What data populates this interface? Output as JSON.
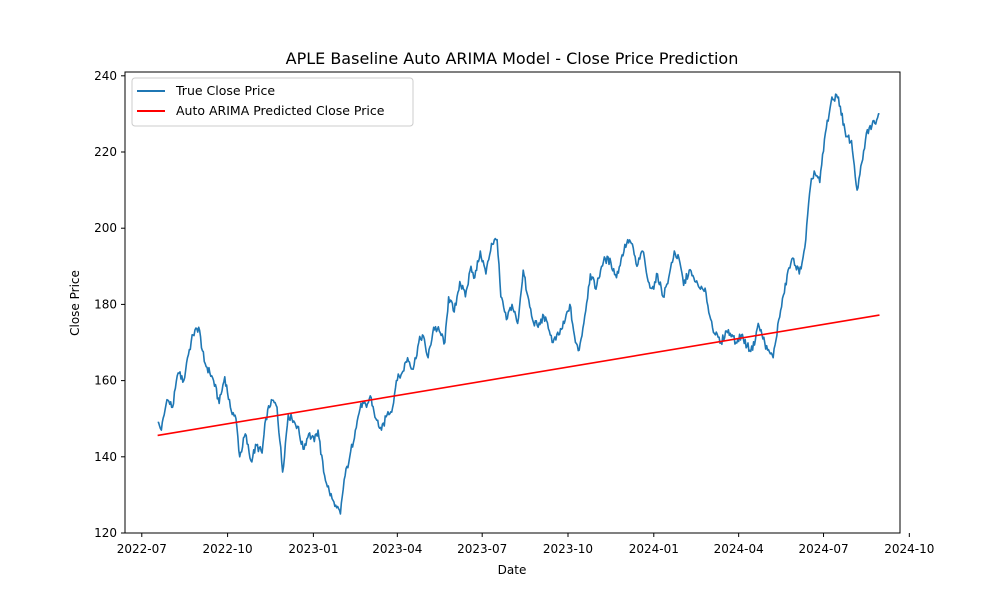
{
  "chart_data": {
    "type": "line",
    "title": "APLE Baseline Auto ARIMA Model - Close Price Prediction",
    "xlabel": "Date",
    "ylabel": "Close Price",
    "xlim": [
      "2022-06-13",
      "2024-09-21"
    ],
    "ylim": [
      120,
      241
    ],
    "xticks": [
      "2022-07",
      "2022-10",
      "2023-01",
      "2023-04",
      "2023-07",
      "2023-10",
      "2024-01",
      "2024-04",
      "2024-07",
      "2024-10"
    ],
    "yticks": [
      120,
      140,
      160,
      180,
      200,
      220,
      240
    ],
    "grid": false,
    "legend_position": "top-left",
    "series": [
      {
        "name": "True Close Price",
        "color": "#1f77b4",
        "x": [
          "2022-07-18",
          "2022-07-22",
          "2022-07-28",
          "2022-08-03",
          "2022-08-09",
          "2022-08-15",
          "2022-08-19",
          "2022-08-25",
          "2022-08-31",
          "2022-09-06",
          "2022-09-12",
          "2022-09-16",
          "2022-09-22",
          "2022-09-28",
          "2022-10-04",
          "2022-10-10",
          "2022-10-14",
          "2022-10-20",
          "2022-10-26",
          "2022-11-01",
          "2022-11-07",
          "2022-11-11",
          "2022-11-17",
          "2022-11-23",
          "2022-11-29",
          "2022-12-05",
          "2022-12-09",
          "2022-12-15",
          "2022-12-21",
          "2022-12-27",
          "2023-01-02",
          "2023-01-06",
          "2023-01-12",
          "2023-01-18",
          "2023-01-24",
          "2023-01-30",
          "2023-02-03",
          "2023-02-09",
          "2023-02-15",
          "2023-02-21",
          "2023-02-27",
          "2023-03-03",
          "2023-03-09",
          "2023-03-15",
          "2023-03-21",
          "2023-03-27",
          "2023-03-31",
          "2023-04-06",
          "2023-04-12",
          "2023-04-18",
          "2023-04-24",
          "2023-04-28",
          "2023-05-04",
          "2023-05-10",
          "2023-05-16",
          "2023-05-22",
          "2023-05-26",
          "2023-06-01",
          "2023-06-07",
          "2023-06-13",
          "2023-06-19",
          "2023-06-23",
          "2023-06-29",
          "2023-07-05",
          "2023-07-11",
          "2023-07-17",
          "2023-07-21",
          "2023-07-27",
          "2023-08-02",
          "2023-08-08",
          "2023-08-14",
          "2023-08-18",
          "2023-08-24",
          "2023-08-30",
          "2023-09-05",
          "2023-09-11",
          "2023-09-15",
          "2023-09-21",
          "2023-09-27",
          "2023-10-03",
          "2023-10-09",
          "2023-10-13",
          "2023-10-19",
          "2023-10-25",
          "2023-10-31",
          "2023-11-06",
          "2023-11-10",
          "2023-11-16",
          "2023-11-22",
          "2023-11-28",
          "2023-12-04",
          "2023-12-08",
          "2023-12-14",
          "2023-12-20",
          "2023-12-26",
          "2024-01-01",
          "2024-01-05",
          "2024-01-11",
          "2024-01-17",
          "2024-01-23",
          "2024-01-29",
          "2024-02-02",
          "2024-02-08",
          "2024-02-14",
          "2024-02-20",
          "2024-02-26",
          "2024-03-01",
          "2024-03-07",
          "2024-03-13",
          "2024-03-19",
          "2024-03-25",
          "2024-03-29",
          "2024-04-04",
          "2024-04-10",
          "2024-04-16",
          "2024-04-22",
          "2024-04-26",
          "2024-05-02",
          "2024-05-08",
          "2024-05-14",
          "2024-05-20",
          "2024-05-24",
          "2024-05-30",
          "2024-06-05",
          "2024-06-11",
          "2024-06-17",
          "2024-06-21",
          "2024-06-27",
          "2024-07-03",
          "2024-07-09",
          "2024-07-15",
          "2024-07-19",
          "2024-07-25",
          "2024-07-31",
          "2024-08-06",
          "2024-08-12",
          "2024-08-16",
          "2024-08-22",
          "2024-08-28",
          "2024-08-30"
        ],
        "values": [
          149,
          147,
          155,
          153,
          162,
          160,
          166,
          172,
          174,
          165,
          162,
          160,
          154,
          161,
          153,
          150,
          140,
          146,
          139,
          143,
          141,
          150,
          155,
          153,
          136,
          151,
          150,
          148,
          142,
          146,
          144,
          147,
          136,
          131,
          127,
          125,
          134,
          140,
          147,
          154,
          153,
          156,
          150,
          147,
          151,
          153,
          160,
          162,
          166,
          163,
          170,
          172,
          166,
          174,
          173,
          170,
          182,
          178,
          186,
          182,
          190,
          187,
          194,
          188,
          196,
          197,
          182,
          176,
          180,
          175,
          189,
          183,
          176,
          174,
          177,
          173,
          170,
          172,
          175,
          180,
          170,
          168,
          177,
          188,
          184,
          190,
          192,
          191,
          187,
          193,
          197,
          196,
          190,
          194,
          186,
          184,
          188,
          182,
          187,
          194,
          191,
          185,
          189,
          186,
          184,
          183,
          177,
          172,
          170,
          173,
          172,
          170,
          172,
          169,
          168,
          175,
          172,
          168,
          166,
          176,
          183,
          189,
          192,
          188,
          195,
          211,
          215,
          212,
          225,
          233,
          235,
          232,
          224,
          223,
          210,
          218,
          225,
          227,
          229,
          230
        ],
        "interpolate": "daily"
      },
      {
        "name": "Auto ARIMA Predicted Close Price",
        "color": "#ff0000",
        "x": [
          "2022-07-18",
          "2024-08-30"
        ],
        "values": [
          145.6,
          177.2
        ]
      }
    ]
  }
}
